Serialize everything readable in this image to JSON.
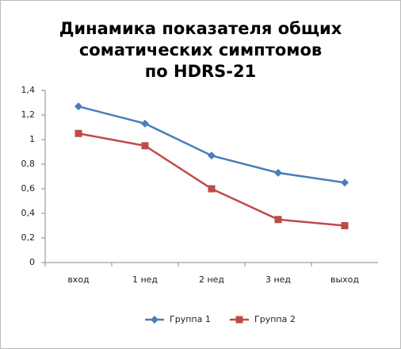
{
  "chart_data": {
    "type": "line",
    "title": [
      "Динамика показателя общих",
      "соматических симптомов",
      "по HDRS-21"
    ],
    "categories": [
      "вход",
      "1 нед",
      "2 нед",
      "3 нед",
      "выход"
    ],
    "series": [
      {
        "name": "Группа 1",
        "color": "#4a7ebb",
        "marker": "diamond",
        "values": [
          1.27,
          1.13,
          0.87,
          0.73,
          0.65
        ]
      },
      {
        "name": "Группа 2",
        "color": "#be4b48",
        "marker": "square",
        "values": [
          1.05,
          0.95,
          0.6,
          0.35,
          0.3
        ]
      }
    ],
    "ylim": [
      0,
      1.4
    ],
    "yticks": [
      0,
      {
        "value": 0.2,
        "label": "0,2"
      },
      {
        "value": 0.4,
        "label": "0,4"
      },
      {
        "value": 0.6,
        "label": "0,6"
      },
      {
        "value": 0.8,
        "label": "0,8"
      },
      1,
      {
        "value": 1.2,
        "label": "1,2"
      },
      {
        "value": 1.4,
        "label": "1,4"
      }
    ],
    "grid": false,
    "legend": "bottom"
  }
}
